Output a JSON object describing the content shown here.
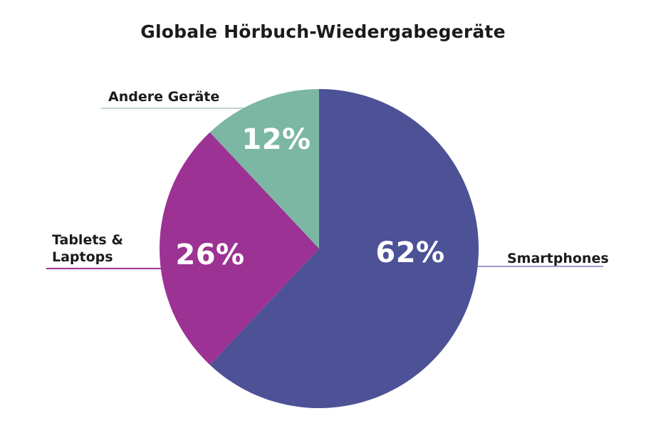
{
  "title": "Globale Hörbuch-Wiedergabegeräte",
  "chart_data": {
    "type": "pie",
    "title": "Globale Hörbuch-Wiedergabegeräte",
    "direction": "clockwise",
    "start_angle_deg": 0,
    "legend_position": "outside-callout-labels",
    "slices": [
      {
        "id": "smartphones",
        "label": "Smartphones",
        "label_display": "Smartphones",
        "value": 62,
        "percent_label": "62%",
        "color": "#4D5196",
        "callout_line_color": "#9C9DC8"
      },
      {
        "id": "tablets-laptops",
        "label": "Tablets & Laptops",
        "label_display": "Tablets &\nLaptops",
        "value": 26,
        "percent_label": "26%",
        "color": "#9C3293",
        "callout_line_color": "#9C3293"
      },
      {
        "id": "andere-geraete",
        "label": "Andere Geräte",
        "label_display": "Andere Geräte",
        "value": 12,
        "percent_label": "12%",
        "color": "#7CB7A4",
        "callout_line_color": "#C3D4CD"
      }
    ]
  },
  "colors": {
    "background": "#FFFFFF",
    "title_text": "#1B1B1B",
    "percent_text": "#FFFFFF"
  }
}
